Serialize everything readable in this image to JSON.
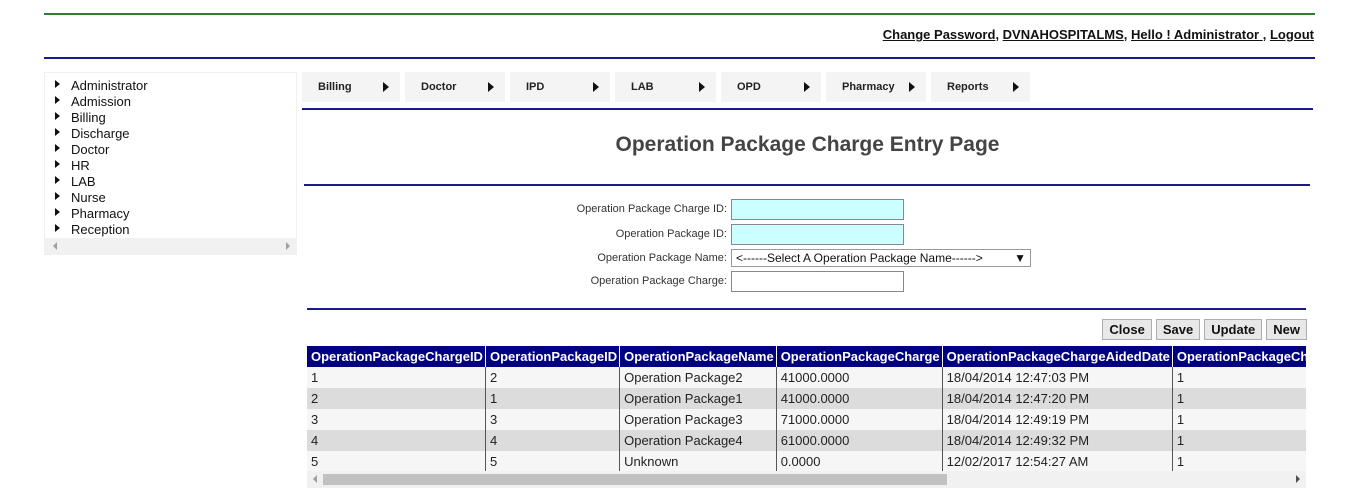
{
  "header": {
    "change_password": "Change Password",
    "hospital": "DVNAHOSPITALMS",
    "greeting": "Hello ! Administrator ",
    "logout": "Logout"
  },
  "sidebar": {
    "items": [
      {
        "label": "Administrator"
      },
      {
        "label": "Admission"
      },
      {
        "label": "Billing"
      },
      {
        "label": "Discharge"
      },
      {
        "label": "Doctor"
      },
      {
        "label": "HR"
      },
      {
        "label": "LAB"
      },
      {
        "label": "Nurse"
      },
      {
        "label": "Pharmacy"
      },
      {
        "label": "Reception"
      }
    ]
  },
  "menu": {
    "items": [
      {
        "label": "Billing"
      },
      {
        "label": "Doctor"
      },
      {
        "label": "IPD"
      },
      {
        "label": "LAB"
      },
      {
        "label": "OPD"
      },
      {
        "label": "Pharmacy"
      },
      {
        "label": "Reports"
      }
    ]
  },
  "page": {
    "title": "Operation Package Charge Entry Page"
  },
  "form": {
    "charge_id_label": "Operation Package Charge ID:",
    "charge_id_value": "",
    "package_id_label": "Operation Package ID:",
    "package_id_value": "",
    "package_name_label": "Operation Package Name:",
    "package_name_selected": "<------Select A Operation Package Name------>",
    "charge_label": "Operation Package Charge:",
    "charge_value": ""
  },
  "buttons": {
    "close": "Close",
    "save": "Save",
    "update": "Update",
    "new": "New"
  },
  "grid": {
    "columns": [
      "OperationPackageChargeID",
      "OperationPackageID",
      "OperationPackageName",
      "OperationPackageCharge",
      "OperationPackageChargeAidedDate",
      "OperationPackageChargeAidedBy"
    ],
    "rows": [
      [
        "1",
        "2",
        "Operation Package2",
        "41000.0000",
        "18/04/2014 12:47:03 PM",
        "1"
      ],
      [
        "2",
        "1",
        "Operation Package1",
        "41000.0000",
        "18/04/2014 12:47:20 PM",
        "1"
      ],
      [
        "3",
        "3",
        "Operation Package3",
        "71000.0000",
        "18/04/2014 12:49:19 PM",
        "1"
      ],
      [
        "4",
        "4",
        "Operation Package4",
        "61000.0000",
        "18/04/2014 12:49:32 PM",
        "1"
      ],
      [
        "5",
        "5",
        "Unknown",
        "0.0000",
        "12/02/2017 12:54:27 AM",
        "1"
      ]
    ]
  }
}
